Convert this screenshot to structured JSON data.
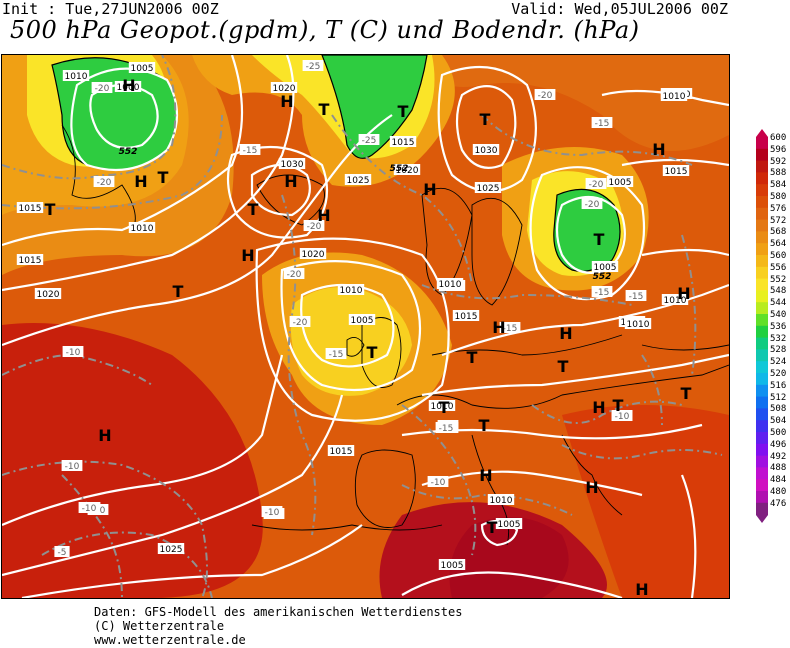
{
  "header": {
    "init": "Init : Tue,27JUN2006 00Z",
    "valid": "Valid: Wed,05JUL2006 00Z",
    "title": "500 hPa Geopot.(gpdm), T (C) und Bodendr. (hPa)"
  },
  "footer": {
    "line1": "Daten: GFS-Modell des amerikanischen Wetterdienstes",
    "line2": "(C) Wetterzentrale",
    "line3": "www.wetterzentrale.de"
  },
  "legend": {
    "labels": [
      "600",
      "596",
      "592",
      "588",
      "584",
      "580",
      "576",
      "572",
      "568",
      "564",
      "560",
      "556",
      "552",
      "548",
      "544",
      "540",
      "536",
      "532",
      "528",
      "524",
      "520",
      "516",
      "512",
      "508",
      "504",
      "500",
      "496",
      "492",
      "488",
      "484",
      "480",
      "476"
    ],
    "colors": [
      "#c8004a",
      "#b4001c",
      "#c01810",
      "#d02808",
      "#d83c08",
      "#dc5008",
      "#e06410",
      "#e47814",
      "#ea8c14",
      "#f0a014",
      "#f4b818",
      "#f8d020",
      "#fae428",
      "#e8f020",
      "#b8ec20",
      "#60e028",
      "#20d040",
      "#10cc80",
      "#10c8b0",
      "#10c8d8",
      "#10b8e8",
      "#1090f0",
      "#1070f0",
      "#2050f0",
      "#4030f0",
      "#6020f0",
      "#8010f0",
      "#a010e0",
      "#c010d0",
      "#d010c0",
      "#b010b0",
      "#802080"
    ]
  },
  "map": {
    "pressure_labels": [
      {
        "t": "1010"
      },
      {
        "t": "1005"
      },
      {
        "t": "1000"
      },
      {
        "t": "1020"
      },
      {
        "t": "1030"
      },
      {
        "t": "1025"
      },
      {
        "t": "1020"
      },
      {
        "t": "1015"
      },
      {
        "t": "1030"
      },
      {
        "t": "1025"
      },
      {
        "t": "1020"
      },
      {
        "t": "1010"
      },
      {
        "t": "1015"
      },
      {
        "t": "1020"
      },
      {
        "t": "1005"
      },
      {
        "t": "1010"
      },
      {
        "t": "1015"
      },
      {
        "t": "1020"
      },
      {
        "t": "1010"
      },
      {
        "t": "1010"
      },
      {
        "t": "1015"
      },
      {
        "t": "1010"
      },
      {
        "t": "1005"
      },
      {
        "t": "1010"
      },
      {
        "t": "1015"
      },
      {
        "t": "1025"
      },
      {
        "t": "1010"
      },
      {
        "t": "1005"
      },
      {
        "t": "1005"
      },
      {
        "t": "1010"
      },
      {
        "t": "1010"
      },
      {
        "t": "1015"
      },
      {
        "t": "1015"
      },
      {
        "t": "1005"
      },
      {
        "t": "1010"
      }
    ],
    "temp_labels": [
      {
        "t": "-20"
      },
      {
        "t": "-25"
      },
      {
        "t": "-20"
      },
      {
        "t": "-15"
      },
      {
        "t": "-20"
      },
      {
        "t": "-25"
      },
      {
        "t": "-20"
      },
      {
        "t": "-15"
      },
      {
        "t": "-20"
      },
      {
        "t": "-15"
      },
      {
        "t": "-10"
      },
      {
        "t": "-20"
      },
      {
        "t": "-15"
      },
      {
        "t": "-10"
      },
      {
        "t": "-15"
      },
      {
        "t": "-15"
      },
      {
        "t": "-15"
      },
      {
        "t": "-10"
      },
      {
        "t": "-10"
      },
      {
        "t": "-10"
      },
      {
        "t": "-10"
      },
      {
        "t": "-10"
      },
      {
        "t": "-10"
      },
      {
        "t": "-5"
      },
      {
        "t": "-10"
      },
      {
        "t": "-15"
      },
      {
        "t": "-20"
      },
      {
        "t": "-20"
      },
      {
        "t": "-15"
      },
      {
        "t": "-10"
      }
    ],
    "geopot_labels": [
      {
        "t": "552"
      },
      {
        "t": "552"
      },
      {
        "t": "552"
      }
    ],
    "centers": [
      {
        "t": "H"
      },
      {
        "t": "T"
      },
      {
        "t": "H"
      },
      {
        "t": "T"
      },
      {
        "t": "H"
      },
      {
        "t": "T"
      },
      {
        "t": "H"
      },
      {
        "t": "T"
      },
      {
        "t": "H"
      },
      {
        "t": "H"
      },
      {
        "t": "T"
      },
      {
        "t": "T"
      },
      {
        "t": "T"
      },
      {
        "t": "T"
      },
      {
        "t": "H"
      },
      {
        "t": "T"
      },
      {
        "t": "H"
      },
      {
        "t": "T"
      },
      {
        "t": "T"
      },
      {
        "t": "H"
      },
      {
        "t": "T"
      },
      {
        "t": "H"
      },
      {
        "t": "T"
      },
      {
        "t": "H"
      },
      {
        "t": "H"
      },
      {
        "t": "T"
      },
      {
        "t": "H"
      },
      {
        "t": "H"
      },
      {
        "t": "T"
      },
      {
        "t": "T"
      },
      {
        "t": "H"
      },
      {
        "t": "H"
      },
      {
        "t": "T"
      }
    ]
  }
}
